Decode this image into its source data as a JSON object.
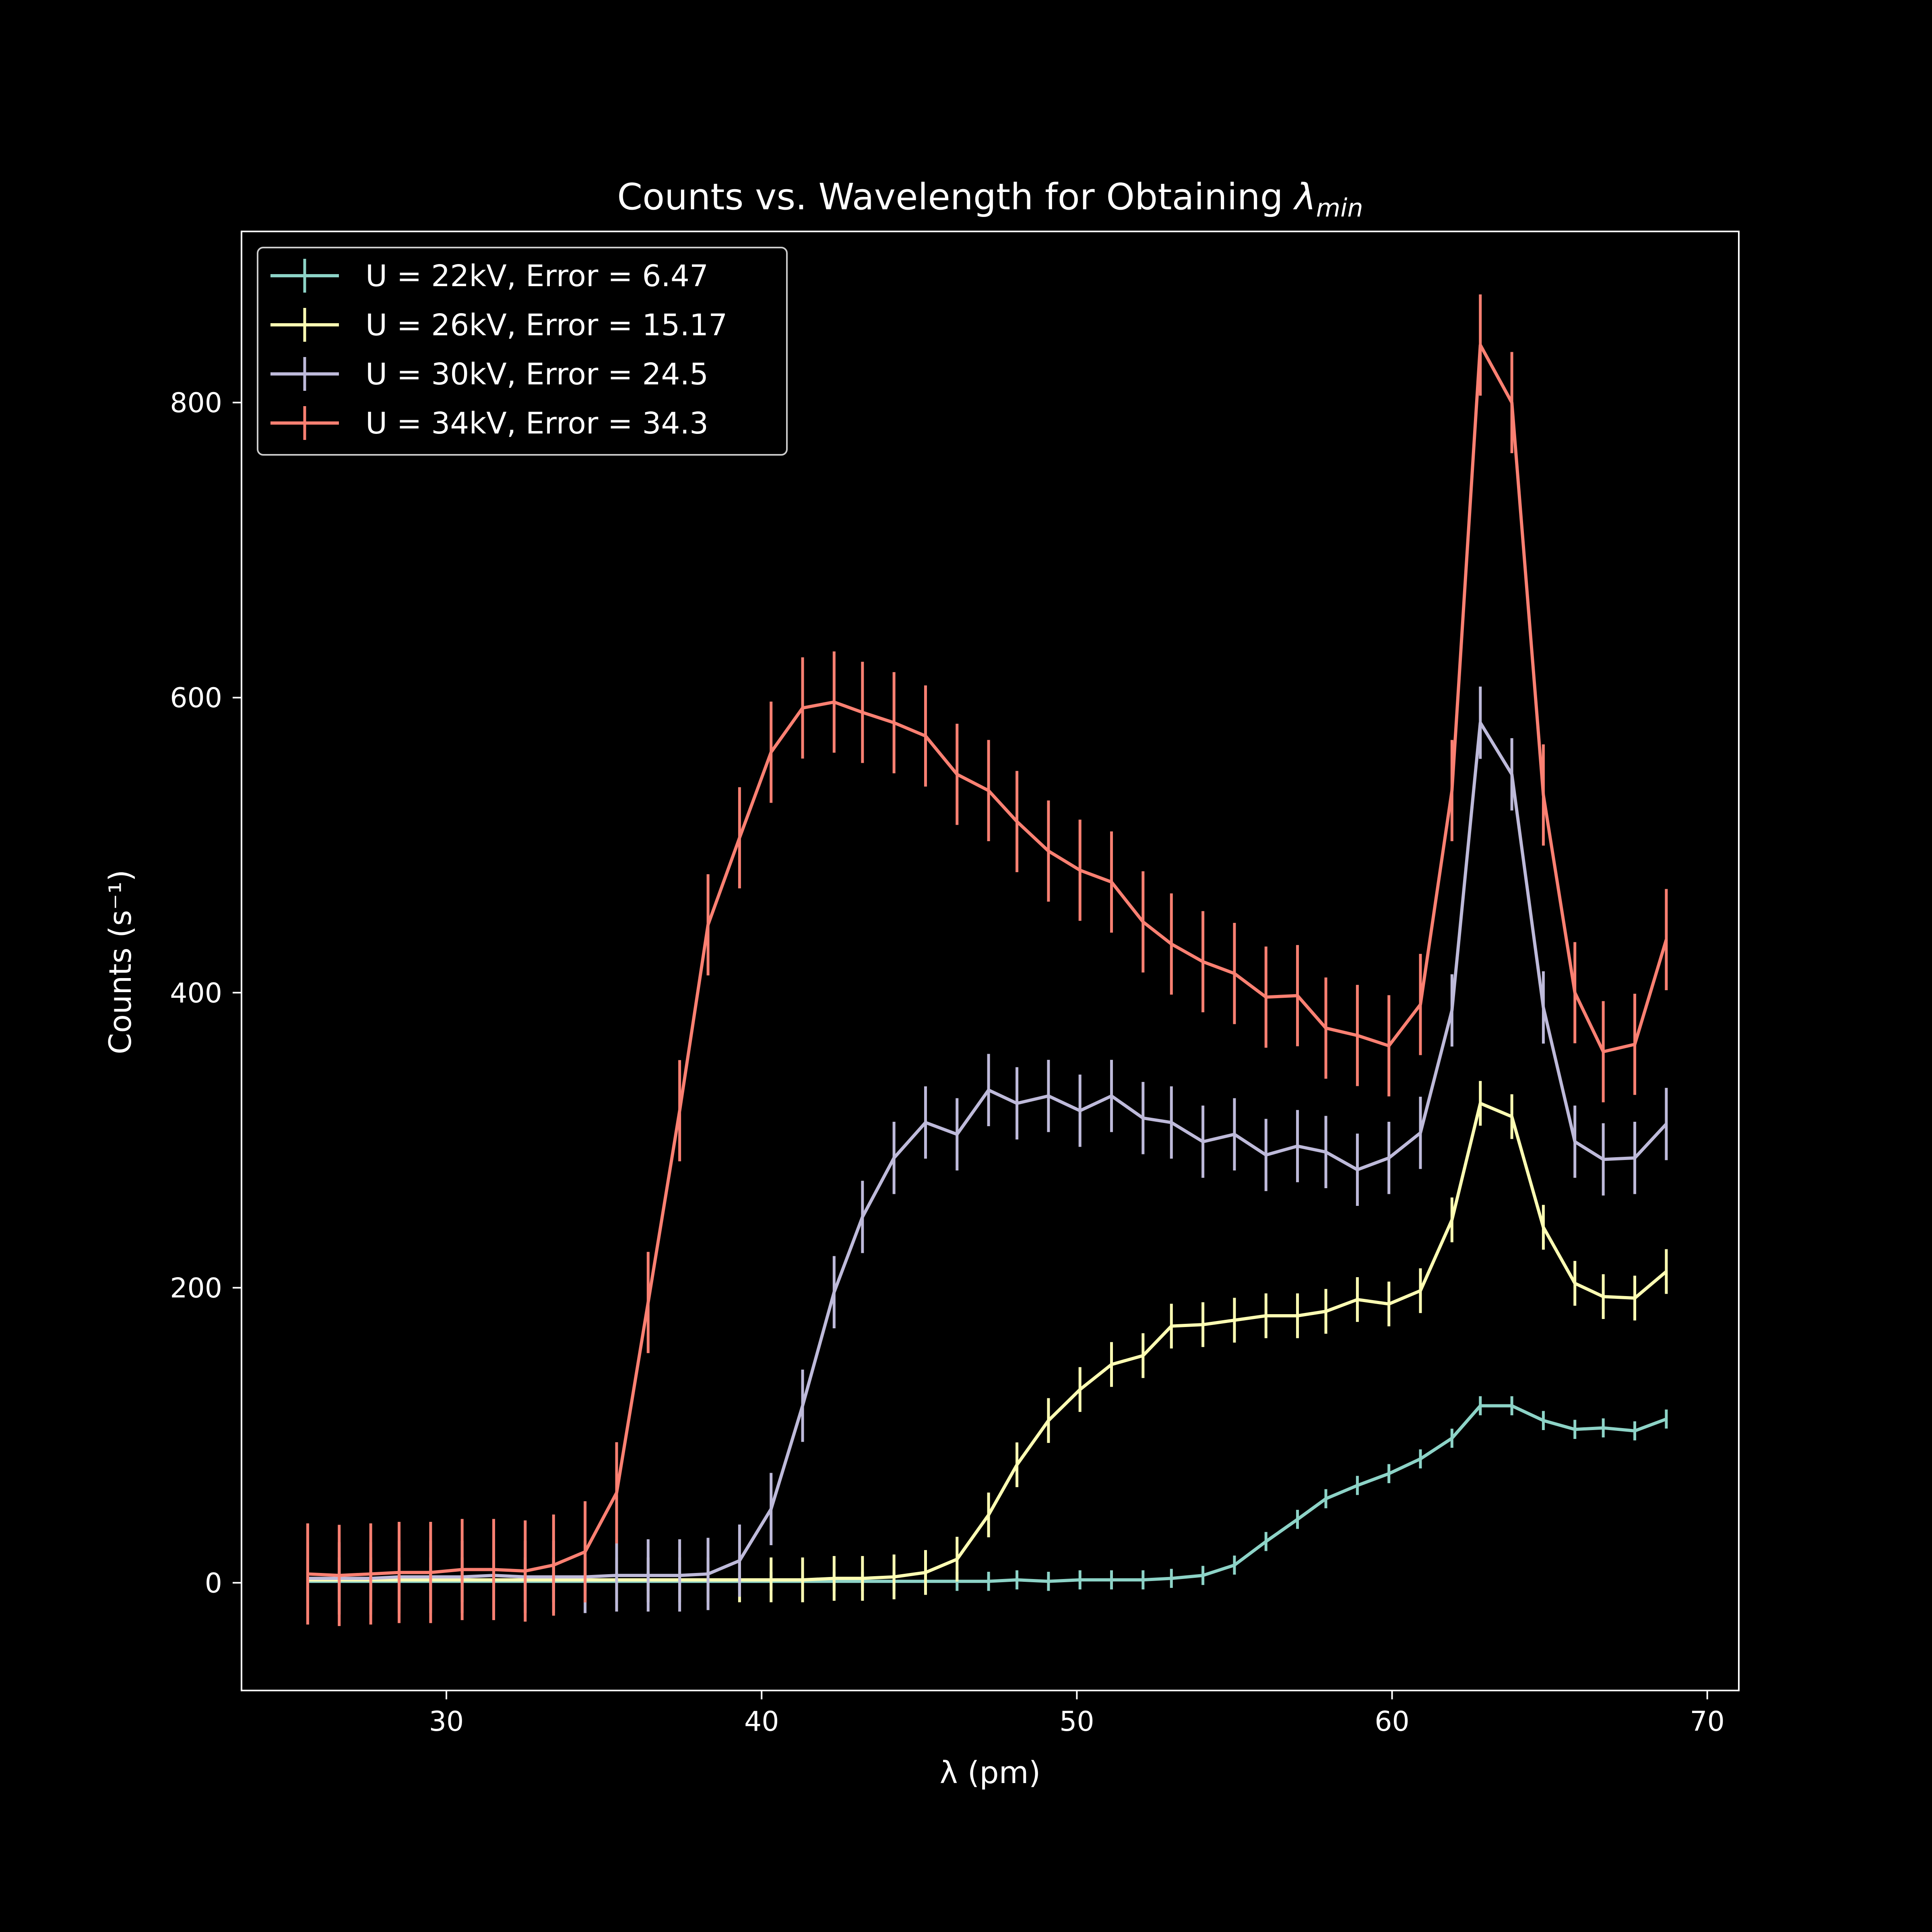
{
  "chart_data": {
    "type": "line",
    "title": "Counts vs. Wavelength for Obtaining ",
    "title_math": "λ",
    "title_math_sub": "min",
    "xlabel": "λ (pm)",
    "ylabel": "Counts (s⁻¹)",
    "xlim": [
      23.5,
      71
    ],
    "ylim": [
      -73,
      916
    ],
    "xticks": [
      30,
      40,
      50,
      60,
      70
    ],
    "yticks": [
      0,
      200,
      400,
      600,
      800
    ],
    "grid": false,
    "legend_position": "top-left",
    "x": [
      25.6,
      26.6,
      27.6,
      28.5,
      29.5,
      30.5,
      31.5,
      32.5,
      33.4,
      34.4,
      35.4,
      36.4,
      37.4,
      38.3,
      39.3,
      40.3,
      41.3,
      42.3,
      43.2,
      44.2,
      45.2,
      46.2,
      47.2,
      48.1,
      49.1,
      50.1,
      51.1,
      52.1,
      53.0,
      54.0,
      55.0,
      56.0,
      57.0,
      57.9,
      58.9,
      59.9,
      60.9,
      61.9,
      62.8,
      63.8,
      64.8,
      65.8,
      66.7,
      67.7,
      68.7
    ],
    "series": [
      {
        "name": "U = 22kV, Error = 6.47",
        "color": "#8dd3c7",
        "error": 6.47,
        "values": [
          1,
          1,
          1,
          1,
          1,
          1,
          1,
          1,
          1,
          1,
          1,
          1,
          1,
          1,
          1,
          1,
          1,
          1,
          1,
          1,
          1,
          1,
          1,
          2,
          1,
          2,
          2,
          2,
          3,
          5,
          12,
          28,
          43,
          57,
          66,
          74,
          84,
          98,
          120,
          120,
          110,
          104,
          105,
          103,
          111
        ]
      },
      {
        "name": "U = 26kV, Error = 15.17",
        "color": "#ffffb3",
        "error": 15.17,
        "values": [
          2,
          2,
          2,
          2,
          2,
          2,
          2,
          2,
          2,
          2,
          2,
          2,
          2,
          2,
          2,
          2,
          2,
          3,
          3,
          4,
          7,
          16,
          46,
          80,
          110,
          131,
          148,
          154,
          174,
          175,
          178,
          181,
          181,
          184,
          192,
          189,
          198,
          246,
          325,
          316,
          241,
          203,
          194,
          193,
          211
        ]
      },
      {
        "name": "U = 30kV, Error = 24.5",
        "color": "#bebada",
        "error": 24.5,
        "values": [
          3,
          3,
          3,
          4,
          4,
          4,
          5,
          4,
          4,
          4,
          5,
          5,
          5,
          6,
          15,
          50,
          120,
          197,
          248,
          288,
          312,
          304,
          334,
          325,
          330,
          320,
          330,
          315,
          312,
          299,
          304,
          290,
          296,
          292,
          280,
          288,
          305,
          388,
          583,
          548,
          390,
          299,
          287,
          288,
          311
        ]
      },
      {
        "name": "U = 34kV, Error = 34.3",
        "color": "#fb8072",
        "error": 34.3,
        "values": [
          6,
          5,
          6,
          7,
          7,
          9,
          9,
          8,
          12,
          21,
          61,
          190,
          320,
          446,
          505,
          563,
          593,
          597,
          590,
          583,
          574,
          548,
          537,
          516,
          496,
          483,
          475,
          448,
          433,
          421,
          413,
          397,
          398,
          376,
          371,
          364,
          392,
          537,
          839,
          800,
          534,
          400,
          360,
          365,
          436
        ]
      }
    ]
  }
}
